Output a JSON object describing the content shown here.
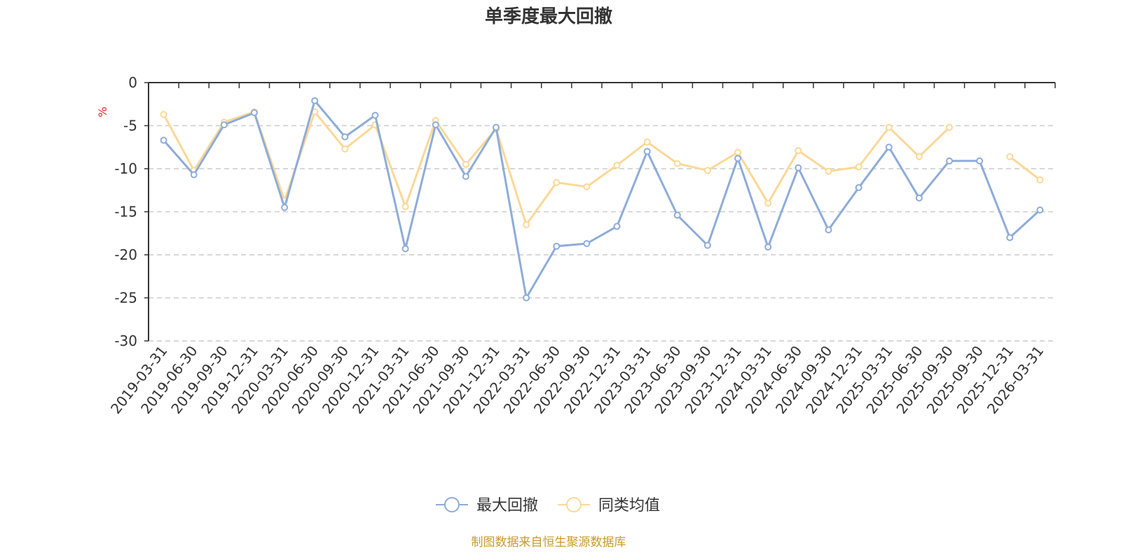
{
  "chart_data": {
    "type": "line",
    "title": "单季度最大回撤",
    "ylabel": "%",
    "ylim": [
      -30,
      0
    ],
    "yticks": [
      0,
      -5,
      -10,
      -15,
      -20,
      -25,
      -30
    ],
    "grid": true,
    "legend_position": "bottom",
    "categories": [
      "2019-03-31",
      "2019-06-30",
      "2019-09-30",
      "2019-12-31",
      "2020-03-31",
      "2020-06-30",
      "2020-09-30",
      "2020-12-31",
      "2021-03-31",
      "2021-06-30",
      "2021-09-30",
      "2021-12-31",
      "2022-03-31",
      "2022-06-30",
      "2022-09-30",
      "2022-12-31",
      "2023-03-31",
      "2023-06-30",
      "2023-09-30",
      "2023-12-31",
      "2024-03-31",
      "2024-06-30",
      "2024-09-30",
      "2024-12-31",
      "2025-03-31",
      "2025-06-30",
      "2025-09-30",
      "2025-09-30",
      "2025-12-31",
      "2026-03-31"
    ],
    "series": [
      {
        "name": "最大回撤",
        "color": "#8eacd9",
        "values": [
          -6.7,
          -10.7,
          -4.9,
          -3.5,
          -14.5,
          -2.1,
          -6.3,
          -3.8,
          -19.3,
          -4.9,
          -10.9,
          -5.2,
          -25.0,
          -19.0,
          -18.7,
          -16.7,
          -8.0,
          -15.4,
          -18.9,
          -8.8,
          -19.1,
          -9.9,
          -17.1,
          -12.2,
          -7.5,
          -13.4,
          -9.1,
          -9.1,
          -18.0,
          -14.8
        ]
      },
      {
        "name": "同类均值",
        "color": "#fbd896",
        "values": [
          -3.7,
          -10.2,
          -4.6,
          -3.4,
          -13.7,
          -3.4,
          -7.7,
          -4.9,
          -14.4,
          -4.4,
          -9.5,
          -5.4,
          -16.5,
          -11.6,
          -12.1,
          -9.6,
          -6.9,
          -9.4,
          -10.2,
          -8.1,
          -14.0,
          -7.9,
          -10.3,
          -9.8,
          -5.2,
          -8.6,
          -5.2,
          null,
          -8.6,
          -11.3
        ]
      }
    ],
    "source_note": "制图数据来自恒生聚源数据库"
  }
}
